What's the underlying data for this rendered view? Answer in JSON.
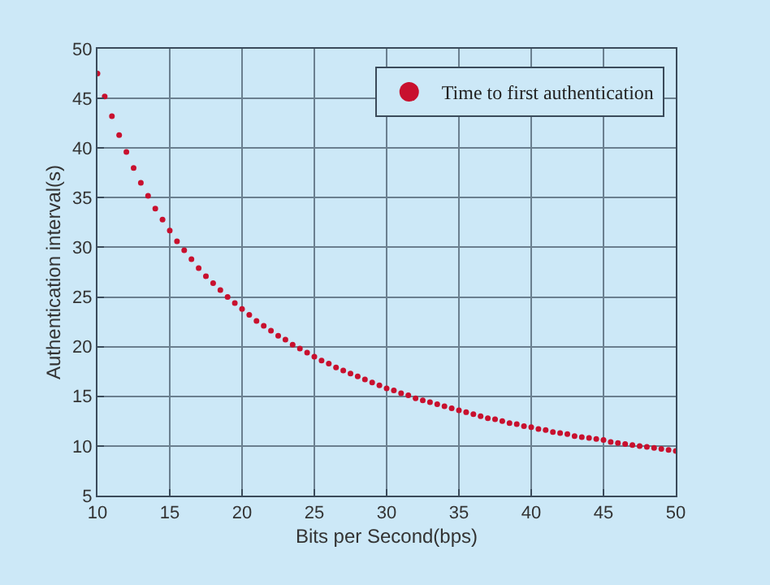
{
  "chart_data": {
    "type": "scatter",
    "xlabel": "Bits per Second(bps)",
    "ylabel": "Authentication interval(s)",
    "x": [
      10,
      10.5,
      11,
      11.5,
      12,
      12.5,
      13,
      13.5,
      14,
      14.5,
      15,
      15.5,
      16,
      16.5,
      17,
      17.5,
      18,
      18.5,
      19,
      19.5,
      20,
      20.5,
      21,
      21.5,
      22,
      22.5,
      23,
      23.5,
      24,
      24.5,
      25,
      25.5,
      26,
      26.5,
      27,
      27.5,
      28,
      28.5,
      29,
      29.5,
      30,
      30.5,
      31,
      31.5,
      32,
      32.5,
      33,
      33.5,
      34,
      34.5,
      35,
      35.5,
      36,
      36.5,
      37,
      37.5,
      38,
      38.5,
      39,
      39.5,
      40,
      40.5,
      41,
      41.5,
      42,
      42.5,
      43,
      43.5,
      44,
      44.5,
      45,
      45.5,
      46,
      46.5,
      47,
      47.5,
      48,
      48.5,
      49,
      49.5,
      50
    ],
    "series": [
      {
        "name": "Time to first authentication",
        "color": "#c8102e",
        "values": [
          47.5,
          45.2,
          43.2,
          41.3,
          39.6,
          38.0,
          36.5,
          35.2,
          33.9,
          32.8,
          31.7,
          30.6,
          29.7,
          28.8,
          27.9,
          27.1,
          26.4,
          25.7,
          25.0,
          24.4,
          23.8,
          23.2,
          22.6,
          22.1,
          21.6,
          21.1,
          20.7,
          20.2,
          19.8,
          19.4,
          19.0,
          18.6,
          18.3,
          17.9,
          17.6,
          17.3,
          17.0,
          16.7,
          16.4,
          16.1,
          15.8,
          15.6,
          15.3,
          15.1,
          14.8,
          14.6,
          14.4,
          14.2,
          14.0,
          13.8,
          13.6,
          13.4,
          13.2,
          13.0,
          12.8,
          12.7,
          12.5,
          12.3,
          12.2,
          12.0,
          11.9,
          11.7,
          11.6,
          11.4,
          11.3,
          11.2,
          11.0,
          10.9,
          10.8,
          10.7,
          10.6,
          10.4,
          10.3,
          10.2,
          10.1,
          10.0,
          9.9,
          9.8,
          9.7,
          9.6,
          9.5
        ]
      }
    ],
    "xlim": [
      10,
      50
    ],
    "xticks": [
      10,
      15,
      20,
      25,
      30,
      35,
      40,
      45,
      50
    ],
    "ylim": [
      5,
      50
    ],
    "yticks": [
      5,
      10,
      15,
      20,
      25,
      30,
      35,
      40,
      45,
      50
    ],
    "grid": true,
    "legend": "top right",
    "marker": "circle"
  }
}
